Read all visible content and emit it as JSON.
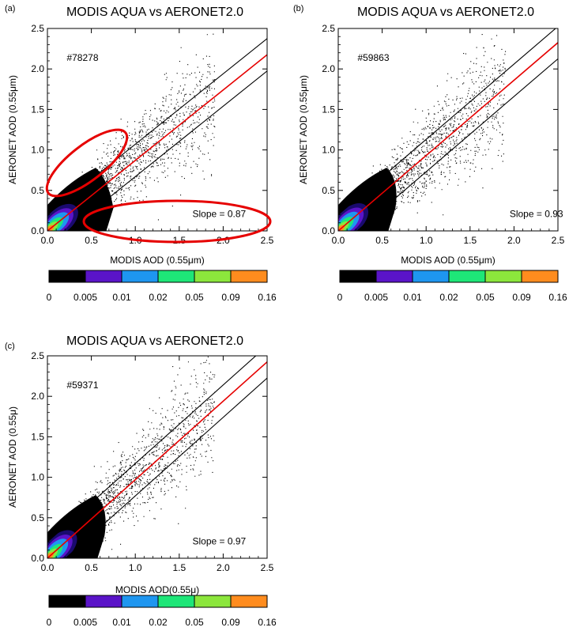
{
  "colorbar": {
    "ticks": [
      "0",
      "0.005",
      "0.01",
      "0.02",
      "0.05",
      "0.09",
      "0.16"
    ],
    "colors": [
      "#000000",
      "#5a14c8",
      "#1e96f0",
      "#1ee678",
      "#8ce63c",
      "#ff8c1e"
    ]
  },
  "chart_data": [
    {
      "type": "scatter",
      "panel_label": "(a)",
      "title": "MODIS AQUA vs AERONET2.0",
      "xlabel": "MODIS AOD (0.55μm)",
      "ylabel": "AERONET AOD (0.55μm)",
      "xlim": [
        0,
        2.5
      ],
      "ylim": [
        0,
        2.5
      ],
      "x_ticks": [
        "0.0",
        "0.5",
        "1.0",
        "1.5",
        "2.0",
        "2.5"
      ],
      "y_ticks": [
        "0.0",
        "0.5",
        "1.0",
        "1.5",
        "2.0",
        "2.5"
      ],
      "count_label": "#78278",
      "slope_label": "Slope = 0.87",
      "slope": 0.87,
      "envelope_offset": 0.2,
      "annotations": [
        "red-ellipse-overestimate",
        "red-ellipse-underestimate"
      ],
      "series": [
        {
          "name": "",
          "kind": "regression",
          "color": "#e60000",
          "x": [
            0,
            2.5
          ],
          "y": [
            0.0,
            2.175
          ]
        },
        {
          "name": "",
          "kind": "envelope-upper",
          "color": "#000000",
          "x": [
            0,
            2.5
          ],
          "y": [
            0.2,
            2.375
          ]
        },
        {
          "name": "",
          "kind": "envelope-lower",
          "color": "#000000",
          "x": [
            0,
            2.5
          ],
          "y": [
            -0.2,
            1.975
          ]
        }
      ]
    },
    {
      "type": "scatter",
      "panel_label": "(b)",
      "title": "MODIS AQUA vs AERONET2.0",
      "xlabel": "MODIS AOD (0.55μm)",
      "ylabel": "AERONET AOD (0.55μm)",
      "xlim": [
        0,
        2.5
      ],
      "ylim": [
        0,
        2.5
      ],
      "x_ticks": [
        "0.0",
        "0.5",
        "1.0",
        "1.5",
        "2.0",
        "2.5"
      ],
      "y_ticks": [
        "0.0",
        "0.5",
        "1.0",
        "1.5",
        "2.0",
        "2.5"
      ],
      "count_label": "#59863",
      "slope_label": "Slope = 0.93",
      "slope": 0.93,
      "envelope_offset": 0.2,
      "annotations": [],
      "series": [
        {
          "name": "",
          "kind": "regression",
          "color": "#e60000",
          "x": [
            0,
            2.5
          ],
          "y": [
            0.0,
            2.325
          ]
        },
        {
          "name": "",
          "kind": "envelope-upper",
          "color": "#000000",
          "x": [
            0,
            2.5
          ],
          "y": [
            0.2,
            2.525
          ]
        },
        {
          "name": "",
          "kind": "envelope-lower",
          "color": "#000000",
          "x": [
            0,
            2.5
          ],
          "y": [
            -0.2,
            2.125
          ]
        }
      ]
    },
    {
      "type": "scatter",
      "panel_label": "(c)",
      "title": "MODIS AQUA vs AERONET2.0",
      "xlabel": "MODIS AOD(0.55μ)",
      "ylabel": "AERONET AOD (0.55μ)",
      "xlim": [
        0,
        2.5
      ],
      "ylim": [
        0,
        2.5
      ],
      "x_ticks": [
        "0.0",
        "0.5",
        "1.0",
        "1.5",
        "2.0",
        "2.5"
      ],
      "y_ticks": [
        "0.0",
        "0.5",
        "1.0",
        "1.5",
        "2.0",
        "2.5"
      ],
      "count_label": "#59371",
      "slope_label": "Slope = 0.97",
      "slope": 0.97,
      "envelope_offset": 0.2,
      "annotations": [],
      "series": [
        {
          "name": "",
          "kind": "regression",
          "color": "#e60000",
          "x": [
            0,
            2.5
          ],
          "y": [
            0.0,
            2.425
          ]
        },
        {
          "name": "",
          "kind": "envelope-upper",
          "color": "#000000",
          "x": [
            0,
            2.5
          ],
          "y": [
            0.2,
            2.625
          ]
        },
        {
          "name": "",
          "kind": "envelope-lower",
          "color": "#000000",
          "x": [
            0,
            2.5
          ],
          "y": [
            -0.2,
            2.225
          ]
        }
      ]
    }
  ]
}
